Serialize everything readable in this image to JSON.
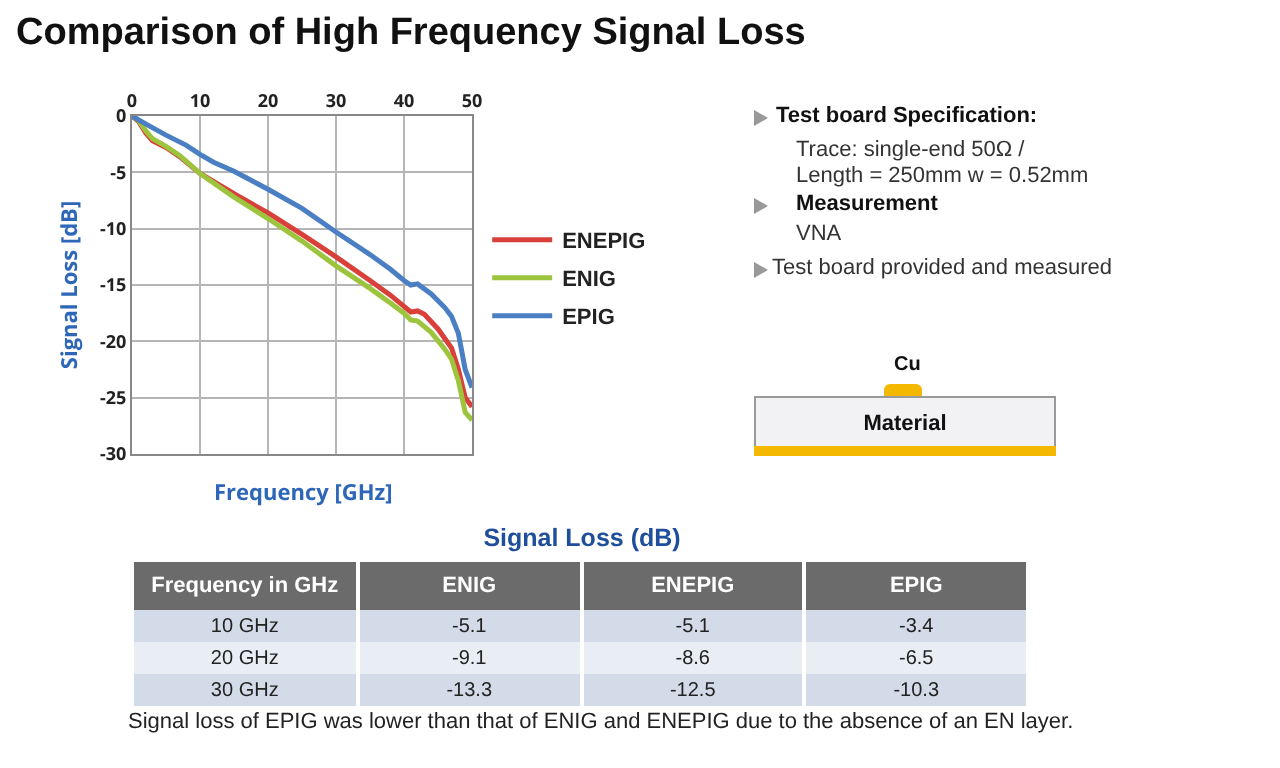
{
  "chart_data": [
    {
      "type": "line",
      "title": "Comparison of High Frequency Signal Loss",
      "xlabel": "Frequency [GHz]",
      "ylabel": "Signal Loss [dB]",
      "xlim": [
        0,
        50
      ],
      "xticks": [
        0,
        10,
        20,
        30,
        40,
        50
      ],
      "ylim": [
        -30,
        0
      ],
      "yticks": [
        -30,
        -25,
        -20,
        -15,
        -10,
        -5,
        0
      ],
      "grid": true,
      "legend": "right",
      "line_style": "solid",
      "marker": "none",
      "series": [
        {
          "name": "ENEPIG",
          "color": "#d9403a",
          "x": [
            0,
            1,
            2,
            3,
            5,
            7,
            10,
            15,
            20,
            25,
            30,
            35,
            38,
            40,
            41,
            42,
            43,
            45,
            47,
            48,
            49,
            50
          ],
          "values": [
            0,
            -0.5,
            -1.5,
            -2.2,
            -2.8,
            -3.6,
            -5.1,
            -6.9,
            -8.6,
            -10.5,
            -12.5,
            -14.6,
            -15.9,
            -16.9,
            -17.4,
            -17.3,
            -17.6,
            -18.9,
            -20.6,
            -22.5,
            -25.0,
            -25.8
          ]
        },
        {
          "name": "ENIG",
          "color": "#9cc43c",
          "x": [
            0,
            1,
            2,
            3,
            5,
            7,
            10,
            15,
            20,
            25,
            30,
            35,
            38,
            40,
            41,
            42,
            44,
            46,
            47,
            48,
            49,
            50
          ],
          "values": [
            0,
            -0.4,
            -1.3,
            -2.0,
            -2.7,
            -3.5,
            -5.1,
            -7.2,
            -9.1,
            -11.1,
            -13.3,
            -15.3,
            -16.6,
            -17.5,
            -18.1,
            -18.2,
            -19.2,
            -20.7,
            -21.6,
            -23.5,
            -26.3,
            -27.0
          ]
        },
        {
          "name": "EPIG",
          "color": "#4a7fc4",
          "x": [
            0,
            2,
            5,
            8,
            10,
            12,
            15,
            20,
            25,
            30,
            35,
            38,
            40,
            41,
            42,
            44,
            46,
            47,
            48,
            49,
            50
          ],
          "values": [
            0,
            -0.7,
            -1.7,
            -2.6,
            -3.4,
            -4.1,
            -4.9,
            -6.5,
            -8.2,
            -10.3,
            -12.3,
            -13.6,
            -14.6,
            -15.0,
            -14.9,
            -15.8,
            -17.0,
            -17.8,
            -19.3,
            -22.5,
            -24.1
          ]
        }
      ],
      "annotations": [
        "Test board Specification:",
        "Trace: single-end 50Ω /",
        "Length = 250mm w = 0.52mm",
        "Measurement",
        "VNA",
        "Test board provided and measured",
        "Cu",
        "Material"
      ]
    },
    {
      "type": "other",
      "title": "Signal Loss (dB)",
      "xlabel": "Frequency in GHz",
      "categories": [
        "10 GHz",
        "20 GHz",
        "30 GHz"
      ],
      "data_labels": true,
      "series": [
        {
          "name": "ENIG",
          "colors": [
            "#d3dbe8",
            "#e9edf4",
            "#d3dbe8"
          ],
          "values": [
            -5.1,
            -9.1,
            -13.3
          ]
        },
        {
          "name": "ENEPIG",
          "colors": [
            "#d3dbe8",
            "#e9edf4",
            "#d3dbe8"
          ],
          "values": [
            -5.1,
            -8.6,
            -12.5
          ]
        },
        {
          "name": "EPIG",
          "colors": [
            "#d3dbe8",
            "#e9edf4",
            "#d3dbe8"
          ],
          "values": [
            -3.4,
            -6.5,
            -10.3
          ]
        }
      ],
      "annotations": [
        "Signal loss of EPIG was lower than that of ENIG and ENEPIG due to the absence of an EN layer."
      ]
    }
  ]
}
